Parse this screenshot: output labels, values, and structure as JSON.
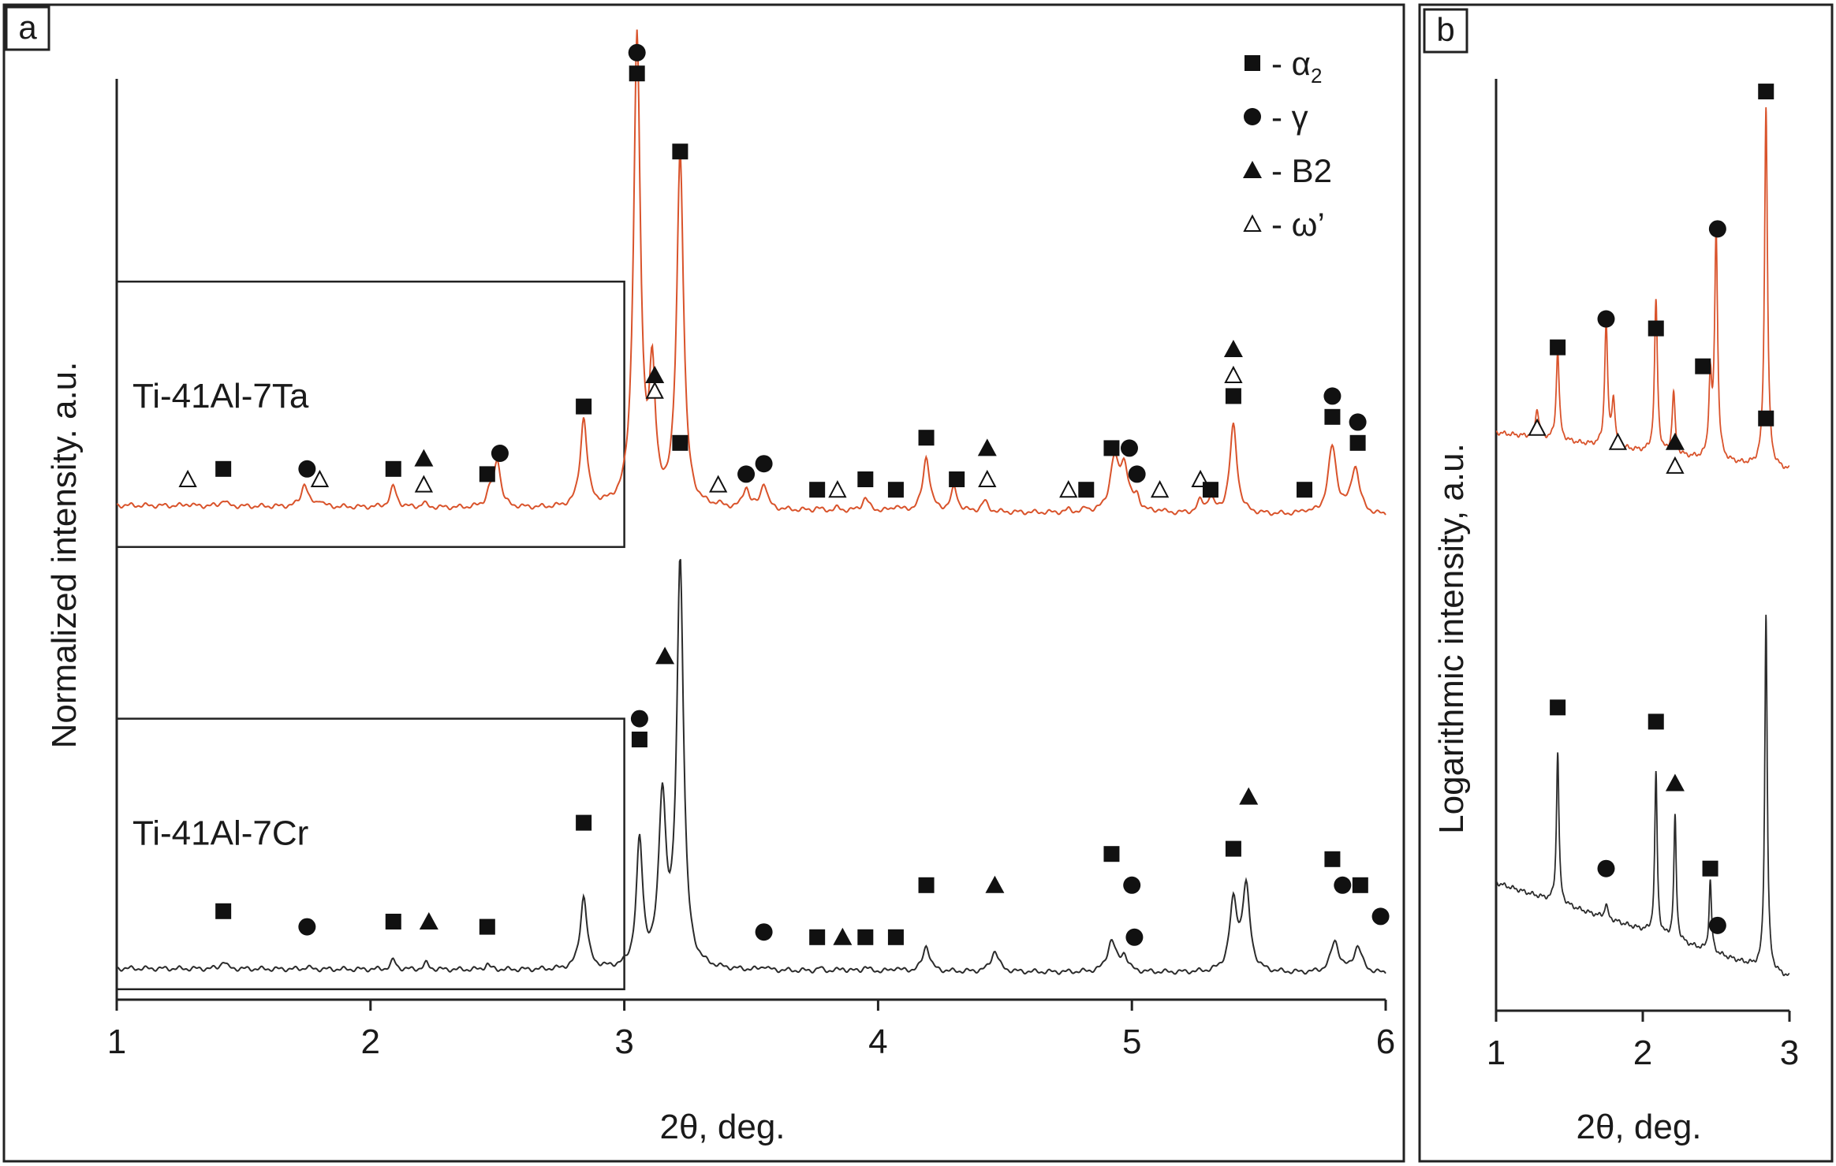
{
  "colors": {
    "ta_line": "#d9532b",
    "cr_line": "#2b2b2b",
    "frame": "#222222"
  },
  "chart_data": [
    {
      "panel_label": "a",
      "type": "line",
      "xlabel": "2θ, deg.",
      "ylabel": "Normalized intensity. a.u.",
      "xlim": [
        1,
        6
      ],
      "ylim": [
        0,
        1.8
      ],
      "xticks": [
        "1",
        "2",
        "3",
        "4",
        "5",
        "6"
      ],
      "grid": false,
      "legend_position": "top-right",
      "legend": [
        {
          "symbol": "square",
          "phase": "- α",
          "sub": "2"
        },
        {
          "symbol": "circle",
          "phase": "- γ",
          "sub": ""
        },
        {
          "symbol": "triangle",
          "phase": "- B2",
          "sub": ""
        },
        {
          "symbol": "open-triangle",
          "phase": "- ω’",
          "sub": ""
        }
      ],
      "series": [
        {
          "name": "Ti-41Al-7Ta",
          "baseline": 0.95,
          "slope": -0.02,
          "peaks": [
            [
              1.28,
              0.004,
              0.012
            ],
            [
              1.42,
              0.012,
              0.012
            ],
            [
              1.74,
              0.045,
              0.015
            ],
            [
              1.8,
              0.012,
              0.012
            ],
            [
              2.09,
              0.04,
              0.015
            ],
            [
              2.21,
              0.008,
              0.012
            ],
            [
              2.47,
              0.028,
              0.015
            ],
            [
              2.5,
              0.09,
              0.015
            ],
            [
              2.84,
              0.17,
              0.016
            ],
            [
              3.05,
              0.9,
              0.016
            ],
            [
              3.11,
              0.24,
              0.014
            ],
            [
              3.22,
              0.68,
              0.016
            ],
            [
              3.37,
              0.005,
              0.012
            ],
            [
              3.48,
              0.04,
              0.015
            ],
            [
              3.55,
              0.05,
              0.015
            ],
            [
              3.76,
              0.004,
              0.012
            ],
            [
              3.84,
              0.005,
              0.012
            ],
            [
              3.95,
              0.025,
              0.015
            ],
            [
              4.07,
              0.01,
              0.012
            ],
            [
              4.19,
              0.105,
              0.016
            ],
            [
              4.3,
              0.045,
              0.015
            ],
            [
              4.42,
              0.02,
              0.015
            ],
            [
              4.75,
              0.005,
              0.012
            ],
            [
              4.82,
              0.006,
              0.012
            ],
            [
              4.93,
              0.095,
              0.02
            ],
            [
              4.97,
              0.085,
              0.02
            ],
            [
              5.02,
              0.025,
              0.014
            ],
            [
              5.11,
              0.005,
              0.012
            ],
            [
              5.27,
              0.022,
              0.014
            ],
            [
              5.31,
              0.028,
              0.014
            ],
            [
              5.4,
              0.17,
              0.017
            ],
            [
              5.68,
              0.006,
              0.012
            ],
            [
              5.79,
              0.13,
              0.02
            ],
            [
              5.88,
              0.09,
              0.02
            ]
          ]
        },
        {
          "name": "Ti-41Al-7Cr",
          "baseline": 0.06,
          "slope": -0.01,
          "peaks": [
            [
              1.42,
              0.015,
              0.012
            ],
            [
              1.75,
              0.004,
              0.012
            ],
            [
              2.09,
              0.018,
              0.012
            ],
            [
              2.22,
              0.012,
              0.012
            ],
            [
              2.46,
              0.01,
              0.012
            ],
            [
              2.84,
              0.14,
              0.016
            ],
            [
              3.06,
              0.24,
              0.015
            ],
            [
              3.15,
              0.32,
              0.017
            ],
            [
              3.22,
              0.78,
              0.016
            ],
            [
              3.55,
              0.008,
              0.012
            ],
            [
              3.77,
              0.005,
              0.012
            ],
            [
              3.86,
              0.005,
              0.012
            ],
            [
              3.95,
              0.008,
              0.012
            ],
            [
              4.07,
              0.007,
              0.012
            ],
            [
              4.19,
              0.05,
              0.016
            ],
            [
              4.46,
              0.04,
              0.018
            ],
            [
              4.92,
              0.06,
              0.02
            ],
            [
              4.97,
              0.03,
              0.016
            ],
            [
              5.4,
              0.13,
              0.018
            ],
            [
              5.45,
              0.16,
              0.018
            ],
            [
              5.8,
              0.06,
              0.02
            ],
            [
              5.89,
              0.05,
              0.02
            ]
          ]
        }
      ],
      "phase_markers": [
        {
          "series": "Ti-41Al-7Ta",
          "x": 1.28,
          "y": 1.0,
          "s": "open-triangle"
        },
        {
          "series": "Ti-41Al-7Ta",
          "x": 1.42,
          "y": 1.02,
          "s": "square"
        },
        {
          "series": "Ti-41Al-7Ta",
          "x": 1.75,
          "y": 1.02,
          "s": "circle"
        },
        {
          "series": "Ti-41Al-7Ta",
          "x": 1.8,
          "y": 1.0,
          "s": "open-triangle"
        },
        {
          "series": "Ti-41Al-7Ta",
          "x": 2.09,
          "y": 1.02,
          "s": "square"
        },
        {
          "series": "Ti-41Al-7Ta",
          "x": 2.21,
          "y": 1.04,
          "s": "triangle"
        },
        {
          "series": "Ti-41Al-7Ta",
          "x": 2.21,
          "y": 0.99,
          "s": "open-triangle"
        },
        {
          "series": "Ti-41Al-7Ta",
          "x": 2.46,
          "y": 1.01,
          "s": "square"
        },
        {
          "series": "Ti-41Al-7Ta",
          "x": 2.51,
          "y": 1.05,
          "s": "circle"
        },
        {
          "series": "Ti-41Al-7Ta",
          "x": 2.84,
          "y": 1.14,
          "s": "square"
        },
        {
          "series": "Ti-41Al-7Ta",
          "x": 3.05,
          "y": 1.82,
          "s": "circle"
        },
        {
          "series": "Ti-41Al-7Ta",
          "x": 3.05,
          "y": 1.78,
          "s": "square"
        },
        {
          "series": "Ti-41Al-7Ta",
          "x": 3.12,
          "y": 1.2,
          "s": "triangle"
        },
        {
          "series": "Ti-41Al-7Ta",
          "x": 3.12,
          "y": 1.17,
          "s": "open-triangle"
        },
        {
          "series": "Ti-41Al-7Ta",
          "x": 3.22,
          "y": 1.63,
          "s": "square"
        },
        {
          "series": "Ti-41Al-7Ta",
          "x": 3.37,
          "y": 0.99,
          "s": "open-triangle"
        },
        {
          "series": "Ti-41Al-7Ta",
          "x": 3.48,
          "y": 1.01,
          "s": "circle"
        },
        {
          "series": "Ti-41Al-7Ta",
          "x": 3.55,
          "y": 1.03,
          "s": "circle"
        },
        {
          "series": "Ti-41Al-7Ta",
          "x": 3.76,
          "y": 0.98,
          "s": "square"
        },
        {
          "series": "Ti-41Al-7Ta",
          "x": 3.84,
          "y": 0.98,
          "s": "open-triangle"
        },
        {
          "series": "Ti-41Al-7Ta",
          "x": 3.95,
          "y": 1.0,
          "s": "square"
        },
        {
          "series": "Ti-41Al-7Ta",
          "x": 4.07,
          "y": 0.98,
          "s": "square"
        },
        {
          "series": "Ti-41Al-7Ta",
          "x": 4.19,
          "y": 1.08,
          "s": "square"
        },
        {
          "series": "Ti-41Al-7Ta",
          "x": 4.31,
          "y": 1.0,
          "s": "square"
        },
        {
          "series": "Ti-41Al-7Ta",
          "x": 4.43,
          "y": 1.06,
          "s": "triangle"
        },
        {
          "series": "Ti-41Al-7Ta",
          "x": 4.43,
          "y": 1.0,
          "s": "open-triangle"
        },
        {
          "series": "Ti-41Al-7Ta",
          "x": 4.75,
          "y": 0.98,
          "s": "open-triangle"
        },
        {
          "series": "Ti-41Al-7Ta",
          "x": 4.82,
          "y": 0.98,
          "s": "square"
        },
        {
          "series": "Ti-41Al-7Ta",
          "x": 4.92,
          "y": 1.06,
          "s": "square"
        },
        {
          "series": "Ti-41Al-7Ta",
          "x": 4.99,
          "y": 1.06,
          "s": "circle"
        },
        {
          "series": "Ti-41Al-7Ta",
          "x": 5.02,
          "y": 1.01,
          "s": "circle"
        },
        {
          "series": "Ti-41Al-7Ta",
          "x": 5.11,
          "y": 0.98,
          "s": "open-triangle"
        },
        {
          "series": "Ti-41Al-7Ta",
          "x": 5.27,
          "y": 1.0,
          "s": "open-triangle"
        },
        {
          "series": "Ti-41Al-7Ta",
          "x": 5.31,
          "y": 0.98,
          "s": "square"
        },
        {
          "series": "Ti-41Al-7Ta",
          "x": 5.4,
          "y": 1.25,
          "s": "triangle"
        },
        {
          "series": "Ti-41Al-7Ta",
          "x": 5.4,
          "y": 1.2,
          "s": "open-triangle"
        },
        {
          "series": "Ti-41Al-7Ta",
          "x": 5.4,
          "y": 1.16,
          "s": "square"
        },
        {
          "series": "Ti-41Al-7Ta",
          "x": 5.68,
          "y": 0.98,
          "s": "square"
        },
        {
          "series": "Ti-41Al-7Ta",
          "x": 5.79,
          "y": 1.16,
          "s": "circle"
        },
        {
          "series": "Ti-41Al-7Ta",
          "x": 5.79,
          "y": 1.12,
          "s": "square"
        },
        {
          "series": "Ti-41Al-7Ta",
          "x": 5.89,
          "y": 1.11,
          "s": "circle"
        },
        {
          "series": "Ti-41Al-7Ta",
          "x": 5.89,
          "y": 1.07,
          "s": "square"
        },
        {
          "series": "Ti-41Al-7Cr",
          "x": 1.42,
          "y": 0.17,
          "s": "square"
        },
        {
          "series": "Ti-41Al-7Cr",
          "x": 1.75,
          "y": 0.14,
          "s": "circle"
        },
        {
          "series": "Ti-41Al-7Cr",
          "x": 2.09,
          "y": 0.15,
          "s": "square"
        },
        {
          "series": "Ti-41Al-7Cr",
          "x": 2.23,
          "y": 0.15,
          "s": "triangle"
        },
        {
          "series": "Ti-41Al-7Cr",
          "x": 2.46,
          "y": 0.14,
          "s": "square"
        },
        {
          "series": "Ti-41Al-7Cr",
          "x": 2.84,
          "y": 0.34,
          "s": "square"
        },
        {
          "series": "Ti-41Al-7Cr",
          "x": 3.06,
          "y": 0.54,
          "s": "circle"
        },
        {
          "series": "Ti-41Al-7Cr",
          "x": 3.06,
          "y": 0.5,
          "s": "square"
        },
        {
          "series": "Ti-41Al-7Cr",
          "x": 3.16,
          "y": 0.66,
          "s": "triangle"
        },
        {
          "series": "Ti-41Al-7Cr",
          "x": 3.22,
          "y": 1.07,
          "s": "square"
        },
        {
          "series": "Ti-41Al-7Cr",
          "x": 3.55,
          "y": 0.13,
          "s": "circle"
        },
        {
          "series": "Ti-41Al-7Cr",
          "x": 3.76,
          "y": 0.12,
          "s": "square"
        },
        {
          "series": "Ti-41Al-7Cr",
          "x": 3.86,
          "y": 0.12,
          "s": "triangle"
        },
        {
          "series": "Ti-41Al-7Cr",
          "x": 3.95,
          "y": 0.12,
          "s": "square"
        },
        {
          "series": "Ti-41Al-7Cr",
          "x": 4.07,
          "y": 0.12,
          "s": "square"
        },
        {
          "series": "Ti-41Al-7Cr",
          "x": 4.19,
          "y": 0.22,
          "s": "square"
        },
        {
          "series": "Ti-41Al-7Cr",
          "x": 4.46,
          "y": 0.22,
          "s": "triangle"
        },
        {
          "series": "Ti-41Al-7Cr",
          "x": 4.92,
          "y": 0.28,
          "s": "square"
        },
        {
          "series": "Ti-41Al-7Cr",
          "x": 5.0,
          "y": 0.22,
          "s": "circle"
        },
        {
          "series": "Ti-41Al-7Cr",
          "x": 5.01,
          "y": 0.12,
          "s": "circle"
        },
        {
          "series": "Ti-41Al-7Cr",
          "x": 5.4,
          "y": 0.29,
          "s": "square"
        },
        {
          "series": "Ti-41Al-7Cr",
          "x": 5.46,
          "y": 0.39,
          "s": "triangle"
        },
        {
          "series": "Ti-41Al-7Cr",
          "x": 5.79,
          "y": 0.27,
          "s": "square"
        },
        {
          "series": "Ti-41Al-7Cr",
          "x": 5.83,
          "y": 0.22,
          "s": "circle"
        },
        {
          "series": "Ti-41Al-7Cr",
          "x": 5.9,
          "y": 0.22,
          "s": "square"
        },
        {
          "series": "Ti-41Al-7Cr",
          "x": 5.98,
          "y": 0.16,
          "s": "circle"
        }
      ],
      "boxes": [
        {
          "name": "Ti-41Al-7Ta",
          "x_range": [
            1,
            3
          ],
          "y_range": [
            0.87,
            1.38
          ]
        },
        {
          "name": "Ti-41Al-7Cr",
          "x_range": [
            1,
            3
          ],
          "y_range": [
            0.02,
            0.54
          ]
        }
      ]
    },
    {
      "panel_label": "b",
      "type": "line",
      "xlabel": "2θ, deg.",
      "ylabel": "Logarithmic intensity, a.u.",
      "xlim": [
        1,
        3
      ],
      "ylim": [
        0,
        1.8
      ],
      "xticks": [
        "1",
        "2",
        "3"
      ],
      "grid": false,
      "series": [
        {
          "name": "Ti-41Al-7Ta",
          "baseline": 1.22,
          "slope": -0.08,
          "peaks": [
            [
              1.28,
              0.06,
              0.015
            ],
            [
              1.42,
              0.19,
              0.012
            ],
            [
              1.75,
              0.26,
              0.012
            ],
            [
              1.8,
              0.1,
              0.012
            ],
            [
              2.09,
              0.32,
              0.012
            ],
            [
              2.21,
              0.13,
              0.012
            ],
            [
              2.46,
              0.16,
              0.012
            ],
            [
              2.5,
              0.48,
              0.012
            ],
            [
              2.84,
              0.76,
              0.012
            ]
          ]
        },
        {
          "name": "Ti-41Al-7Cr",
          "baseline": 0.27,
          "slope": -0.2,
          "peaks": [
            [
              1.42,
              0.32,
              0.01
            ],
            [
              1.75,
              0.03,
              0.012
            ],
            [
              2.09,
              0.34,
              0.01
            ],
            [
              2.22,
              0.26,
              0.01
            ],
            [
              2.46,
              0.15,
              0.01
            ],
            [
              2.84,
              0.75,
              0.01
            ]
          ]
        }
      ],
      "phase_markers": [
        {
          "series": "Ti-41Al-7Ta",
          "x": 1.28,
          "y": 1.23,
          "s": "open-triangle"
        },
        {
          "series": "Ti-41Al-7Ta",
          "x": 1.42,
          "y": 1.4,
          "s": "square"
        },
        {
          "series": "Ti-41Al-7Ta",
          "x": 1.75,
          "y": 1.46,
          "s": "circle"
        },
        {
          "series": "Ti-41Al-7Ta",
          "x": 1.83,
          "y": 1.2,
          "s": "open-triangle"
        },
        {
          "series": "Ti-41Al-7Ta",
          "x": 2.09,
          "y": 1.44,
          "s": "square"
        },
        {
          "series": "Ti-41Al-7Ta",
          "x": 2.22,
          "y": 1.2,
          "s": "triangle"
        },
        {
          "series": "Ti-41Al-7Ta",
          "x": 2.22,
          "y": 1.15,
          "s": "open-triangle"
        },
        {
          "series": "Ti-41Al-7Ta",
          "x": 2.41,
          "y": 1.36,
          "s": "square"
        },
        {
          "series": "Ti-41Al-7Ta",
          "x": 2.51,
          "y": 1.65,
          "s": "circle"
        },
        {
          "series": "Ti-41Al-7Ta",
          "x": 2.84,
          "y": 1.94,
          "s": "square"
        },
        {
          "series": "Ti-41Al-7Cr",
          "x": 1.42,
          "y": 0.64,
          "s": "square"
        },
        {
          "series": "Ti-41Al-7Cr",
          "x": 1.75,
          "y": 0.3,
          "s": "circle"
        },
        {
          "series": "Ti-41Al-7Cr",
          "x": 2.09,
          "y": 0.61,
          "s": "square"
        },
        {
          "series": "Ti-41Al-7Cr",
          "x": 2.22,
          "y": 0.48,
          "s": "triangle"
        },
        {
          "series": "Ti-41Al-7Cr",
          "x": 2.46,
          "y": 0.3,
          "s": "square"
        },
        {
          "series": "Ti-41Al-7Cr",
          "x": 2.51,
          "y": 0.18,
          "s": "circle"
        },
        {
          "series": "Ti-41Al-7Cr",
          "x": 2.84,
          "y": 1.25,
          "s": "square"
        }
      ]
    }
  ]
}
